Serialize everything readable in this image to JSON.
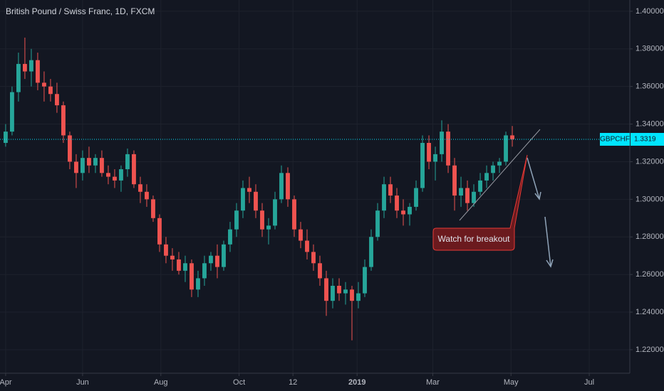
{
  "chart_data": {
    "type": "candlestick",
    "title": "British Pound / Swiss Franc, 1D, FXCM",
    "up_color": "#26a69a",
    "down_color": "#ef5350",
    "xlim": [
      -4.4,
      484.4
    ],
    "xticks": [
      {
        "value": 0,
        "label": "Apr"
      },
      {
        "value": 60,
        "label": "Jun"
      },
      {
        "value": 121,
        "label": "Aug"
      },
      {
        "value": 182,
        "label": "Oct"
      },
      {
        "value": 224,
        "label": "12"
      },
      {
        "value": 274,
        "label": "2019"
      },
      {
        "value": 333,
        "label": "Mar"
      },
      {
        "value": 394,
        "label": "May"
      },
      {
        "value": 455,
        "label": "Jul"
      }
    ],
    "ylim": [
      1.2075,
      1.406
    ],
    "yticks": [
      {
        "value": 1.22,
        "label": "1.22000"
      },
      {
        "value": 1.24,
        "label": "1.24000"
      },
      {
        "value": 1.26,
        "label": "1.26000"
      },
      {
        "value": 1.28,
        "label": "1.28000"
      },
      {
        "value": 1.3,
        "label": "1.30000"
      },
      {
        "value": 1.32,
        "label": "1.32000"
      },
      {
        "value": 1.34,
        "label": "1.34000"
      },
      {
        "value": 1.36,
        "label": "1.36000"
      },
      {
        "value": 1.38,
        "label": "1.38000"
      },
      {
        "value": 1.4,
        "label": "1.40000"
      }
    ],
    "current_price": {
      "name": "GBPCHF",
      "value": 1.3319,
      "color": "#00e5ff"
    },
    "annotation": "Watch for breakout",
    "x": [
      0,
      5,
      10,
      15,
      20,
      25,
      30,
      35,
      40,
      45,
      50,
      55,
      60,
      65,
      70,
      75,
      80,
      85,
      90,
      95,
      100,
      105,
      110,
      115,
      120,
      125,
      130,
      135,
      140,
      145,
      150,
      155,
      160,
      165,
      170,
      175,
      180,
      185,
      190,
      195,
      200,
      205,
      210,
      215,
      220,
      225,
      230,
      235,
      240,
      245,
      250,
      255,
      260,
      265,
      270,
      275,
      280,
      285,
      290,
      295,
      300,
      305,
      310,
      315,
      320,
      325,
      330,
      335,
      340,
      345,
      350,
      355,
      360,
      365,
      370,
      375,
      380,
      385,
      390,
      395
    ],
    "ohlc": [
      [
        1.33,
        1.34,
        1.328,
        1.336
      ],
      [
        1.336,
        1.36,
        1.334,
        1.357
      ],
      [
        1.357,
        1.378,
        1.352,
        1.372
      ],
      [
        1.372,
        1.386,
        1.364,
        1.368
      ],
      [
        1.368,
        1.38,
        1.36,
        1.374
      ],
      [
        1.374,
        1.378,
        1.358,
        1.362
      ],
      [
        1.362,
        1.368,
        1.352,
        1.36
      ],
      [
        1.36,
        1.364,
        1.352,
        1.356
      ],
      [
        1.356,
        1.362,
        1.346,
        1.35
      ],
      [
        1.35,
        1.352,
        1.33,
        1.334
      ],
      [
        1.334,
        1.336,
        1.316,
        1.32
      ],
      [
        1.32,
        1.324,
        1.306,
        1.314
      ],
      [
        1.314,
        1.326,
        1.31,
        1.322
      ],
      [
        1.322,
        1.328,
        1.314,
        1.318
      ],
      [
        1.318,
        1.324,
        1.314,
        1.322
      ],
      [
        1.322,
        1.326,
        1.312,
        1.314
      ],
      [
        1.314,
        1.318,
        1.308,
        1.312
      ],
      [
        1.312,
        1.316,
        1.306,
        1.31
      ],
      [
        1.31,
        1.318,
        1.304,
        1.316
      ],
      [
        1.316,
        1.327,
        1.312,
        1.324
      ],
      [
        1.324,
        1.326,
        1.306,
        1.308
      ],
      [
        1.308,
        1.312,
        1.298,
        1.304
      ],
      [
        1.304,
        1.308,
        1.296,
        1.3
      ],
      [
        1.3,
        1.302,
        1.288,
        1.29
      ],
      [
        1.29,
        1.292,
        1.272,
        1.276
      ],
      [
        1.276,
        1.28,
        1.266,
        1.27
      ],
      [
        1.27,
        1.274,
        1.262,
        1.268
      ],
      [
        1.268,
        1.272,
        1.26,
        1.262
      ],
      [
        1.262,
        1.27,
        1.256,
        1.266
      ],
      [
        1.266,
        1.268,
        1.248,
        1.252
      ],
      [
        1.252,
        1.262,
        1.248,
        1.258
      ],
      [
        1.258,
        1.27,
        1.254,
        1.266
      ],
      [
        1.266,
        1.272,
        1.262,
        1.27
      ],
      [
        1.27,
        1.276,
        1.258,
        1.264
      ],
      [
        1.264,
        1.278,
        1.262,
        1.276
      ],
      [
        1.276,
        1.288,
        1.272,
        1.284
      ],
      [
        1.284,
        1.298,
        1.28,
        1.294
      ],
      [
        1.294,
        1.31,
        1.29,
        1.306
      ],
      [
        1.306,
        1.312,
        1.298,
        1.304
      ],
      [
        1.304,
        1.308,
        1.29,
        1.294
      ],
      [
        1.294,
        1.298,
        1.28,
        1.284
      ],
      [
        1.284,
        1.29,
        1.276,
        1.286
      ],
      [
        1.286,
        1.304,
        1.284,
        1.3
      ],
      [
        1.3,
        1.318,
        1.298,
        1.314
      ],
      [
        1.314,
        1.317,
        1.296,
        1.3
      ],
      [
        1.3,
        1.302,
        1.28,
        1.284
      ],
      [
        1.284,
        1.288,
        1.274,
        1.278
      ],
      [
        1.278,
        1.284,
        1.268,
        1.272
      ],
      [
        1.272,
        1.276,
        1.262,
        1.266
      ],
      [
        1.266,
        1.27,
        1.254,
        1.258
      ],
      [
        1.258,
        1.262,
        1.238,
        1.246
      ],
      [
        1.246,
        1.258,
        1.242,
        1.254
      ],
      [
        1.254,
        1.258,
        1.246,
        1.25
      ],
      [
        1.25,
        1.256,
        1.244,
        1.252
      ],
      [
        1.252,
        1.254,
        1.225,
        1.246
      ],
      [
        1.246,
        1.256,
        1.242,
        1.25
      ],
      [
        1.25,
        1.268,
        1.248,
        1.264
      ],
      [
        1.264,
        1.284,
        1.262,
        1.28
      ],
      [
        1.28,
        1.298,
        1.278,
        1.294
      ],
      [
        1.294,
        1.312,
        1.29,
        1.308
      ],
      [
        1.308,
        1.312,
        1.298,
        1.302
      ],
      [
        1.302,
        1.306,
        1.29,
        1.294
      ],
      [
        1.294,
        1.3,
        1.286,
        1.292
      ],
      [
        1.292,
        1.298,
        1.286,
        1.296
      ],
      [
        1.296,
        1.31,
        1.294,
        1.306
      ],
      [
        1.306,
        1.334,
        1.304,
        1.33
      ],
      [
        1.33,
        1.334,
        1.316,
        1.32
      ],
      [
        1.32,
        1.328,
        1.31,
        1.324
      ],
      [
        1.324,
        1.342,
        1.32,
        1.336
      ],
      [
        1.336,
        1.34,
        1.314,
        1.318
      ],
      [
        1.318,
        1.322,
        1.294,
        1.302
      ],
      [
        1.302,
        1.312,
        1.296,
        1.306
      ],
      [
        1.306,
        1.31,
        1.294,
        1.298
      ],
      [
        1.298,
        1.308,
        1.296,
        1.304
      ],
      [
        1.304,
        1.314,
        1.302,
        1.31
      ],
      [
        1.31,
        1.318,
        1.306,
        1.314
      ],
      [
        1.314,
        1.32,
        1.31,
        1.318
      ],
      [
        1.318,
        1.322,
        1.314,
        1.32
      ],
      [
        1.32,
        1.336,
        1.318,
        1.334
      ],
      [
        1.334,
        1.339,
        1.328,
        1.332
      ]
    ]
  }
}
